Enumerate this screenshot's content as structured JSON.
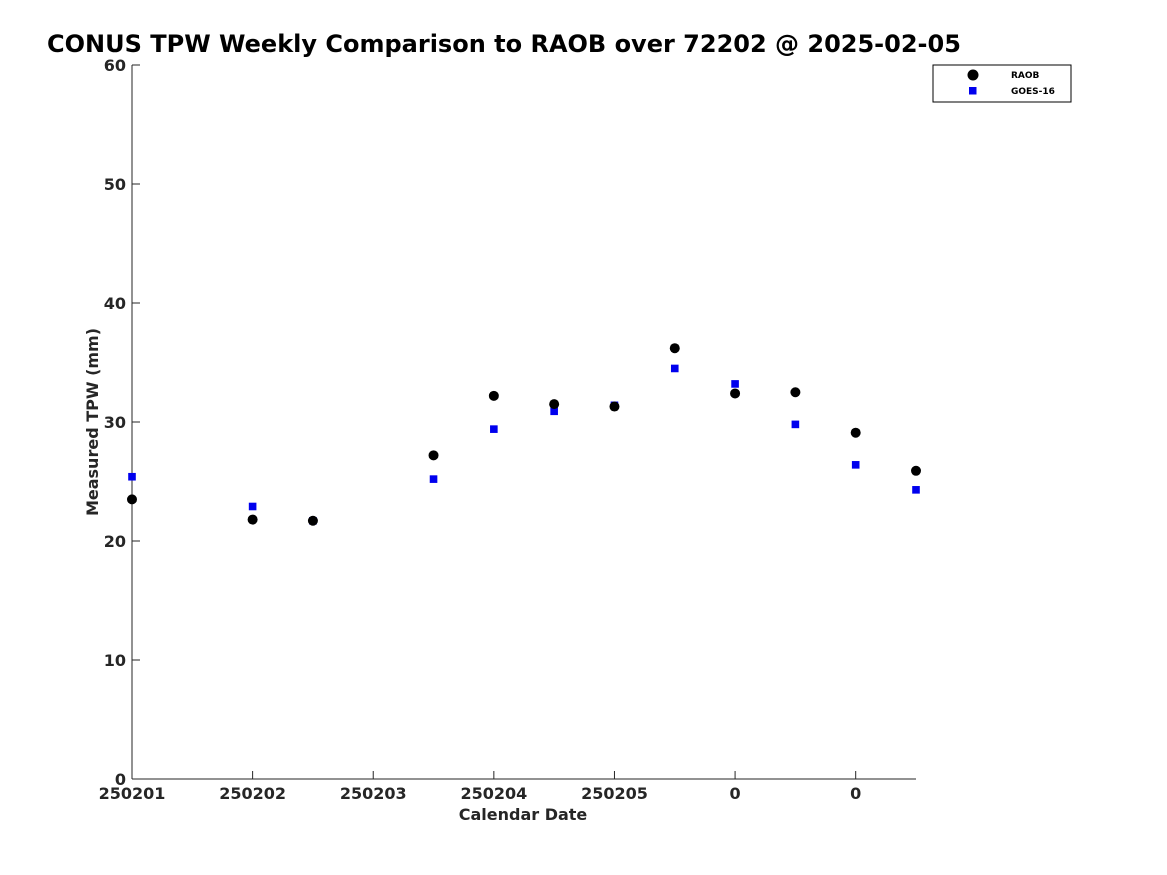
{
  "chart_data": {
    "type": "scatter",
    "title": "CONUS TPW Weekly Comparison to RAOB over 72202 @ 2025-02-05",
    "xlabel": "Calendar Date",
    "ylabel": "Measured TPW (mm)",
    "x_tick_labels": [
      "250201",
      "250202",
      "250203",
      "250204",
      "250205",
      "0",
      "0"
    ],
    "x_tick_positions": [
      0,
      2,
      4,
      6,
      8,
      10,
      12
    ],
    "xlim": [
      0,
      13
    ],
    "ylim": [
      0,
      60
    ],
    "y_ticks": [
      0,
      10,
      20,
      30,
      40,
      50,
      60
    ],
    "grid": false,
    "legend_position": "top-right",
    "series": [
      {
        "name": "RAOB",
        "marker": "circle",
        "color": "#000000",
        "x": [
          0,
          2,
          3,
          5,
          6,
          7,
          8,
          9,
          10,
          11,
          12,
          13
        ],
        "y": [
          23.5,
          21.8,
          21.7,
          27.2,
          32.2,
          31.5,
          31.3,
          36.2,
          32.4,
          32.5,
          29.1,
          25.9
        ]
      },
      {
        "name": "GOES-16",
        "marker": "square",
        "color": "#0000ee",
        "x": [
          0,
          2,
          3,
          5,
          6,
          7,
          8,
          9,
          10,
          11,
          12,
          13
        ],
        "y": [
          25.4,
          22.9,
          21.7,
          25.2,
          29.4,
          30.9,
          31.4,
          34.5,
          33.2,
          29.8,
          26.4,
          24.3
        ]
      }
    ]
  }
}
